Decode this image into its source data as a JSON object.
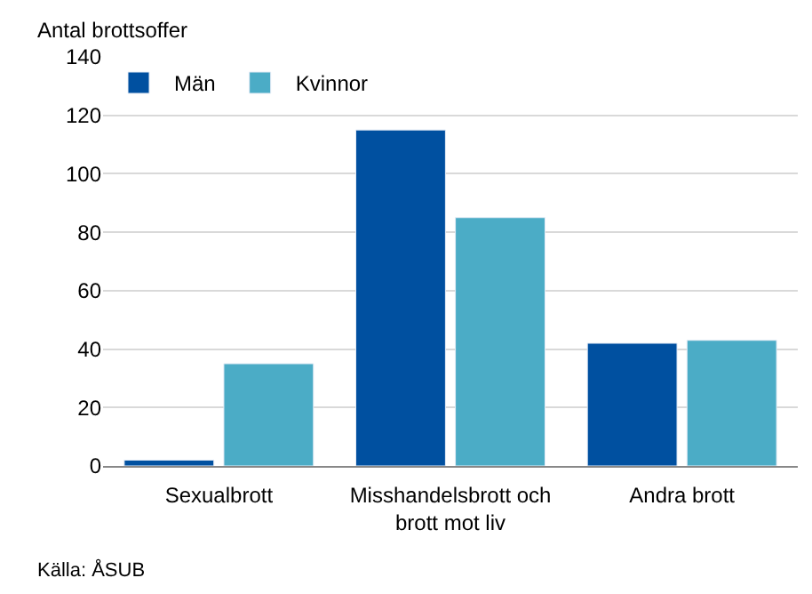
{
  "chart_data": {
    "type": "bar",
    "ylabel": "Antal brottsoffer",
    "categories": [
      "Sexualbrott",
      "Misshandelsbrott och brott mot liv",
      "Andra brott"
    ],
    "series": [
      {
        "name": "Män",
        "color": "#0050a0",
        "values": [
          2,
          115,
          42
        ]
      },
      {
        "name": "Kvinnor",
        "color": "#4bacc6",
        "values": [
          35,
          85,
          43
        ]
      }
    ],
    "ylim": [
      0,
      140
    ],
    "yticks": [
      0,
      20,
      40,
      60,
      80,
      100,
      120,
      140
    ],
    "grid": "y",
    "legend": "top left",
    "annotations": [
      "Källa: ÅSUB"
    ]
  }
}
